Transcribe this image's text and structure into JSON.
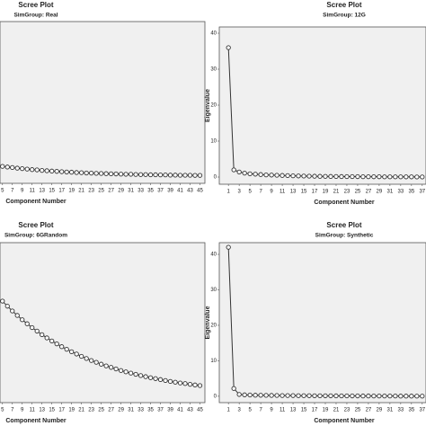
{
  "chart_data": [
    {
      "type": "line",
      "title": "Scree Plot",
      "subtitle": "SimGroup: Real",
      "x_label": "Component Number",
      "color": "#333333",
      "x": [
        5,
        6,
        7,
        8,
        9,
        10,
        11,
        12,
        13,
        14,
        15,
        16,
        17,
        18,
        19,
        20,
        21,
        22,
        23,
        24,
        25,
        26,
        27,
        28,
        29,
        30,
        31,
        32,
        33,
        34,
        35,
        36,
        37,
        38,
        39,
        40,
        41,
        42,
        43,
        44,
        45
      ],
      "values": [
        1.05,
        1.01,
        0.98,
        0.94,
        0.91,
        0.88,
        0.85,
        0.83,
        0.8,
        0.78,
        0.76,
        0.74,
        0.72,
        0.7,
        0.69,
        0.67,
        0.66,
        0.64,
        0.63,
        0.62,
        0.61,
        0.6,
        0.59,
        0.58,
        0.57,
        0.56,
        0.56,
        0.55,
        0.54,
        0.54,
        0.53,
        0.53,
        0.52,
        0.52,
        0.51,
        0.51,
        0.5,
        0.5,
        0.5,
        0.49,
        0.49
      ],
      "xlim": [
        4.5,
        46
      ],
      "ylim": [
        0,
        10
      ],
      "xticks": [
        5,
        7,
        9,
        11,
        13,
        15,
        17,
        19,
        21,
        23,
        25,
        27,
        29,
        31,
        33,
        35,
        37,
        39,
        41,
        43,
        45
      ]
    },
    {
      "type": "line",
      "title": "Scree Plot",
      "subtitle": "SimGroup: 12G",
      "x_label": "Component Number",
      "y_label": "Eigenvalue",
      "color": "#333333",
      "x": [
        1,
        2,
        3,
        4,
        5,
        6,
        7,
        8,
        9,
        10,
        11,
        12,
        13,
        14,
        15,
        16,
        17,
        18,
        19,
        20,
        21,
        22,
        23,
        24,
        25,
        26,
        27,
        28,
        29,
        30,
        31,
        32,
        33,
        34,
        35,
        36,
        37
      ],
      "values": [
        36,
        2,
        1.4,
        1.1,
        0.9,
        0.8,
        0.7,
        0.6,
        0.55,
        0.5,
        0.45,
        0.4,
        0.35,
        0.3,
        0.28,
        0.25,
        0.23,
        0.2,
        0.18,
        0.17,
        0.15,
        0.14,
        0.13,
        0.12,
        0.11,
        0.1,
        0.09,
        0.08,
        0.08,
        0.07,
        0.07,
        0.06,
        0.06,
        0.05,
        0.05,
        0.04,
        0.04
      ],
      "xlim": [
        -0.7,
        37.7
      ],
      "ylim": [
        -2,
        41.75
      ],
      "xticks": [
        1,
        3,
        5,
        7,
        9,
        11,
        13,
        15,
        17,
        19,
        21,
        23,
        25,
        27,
        29,
        31,
        33,
        35,
        37
      ],
      "yticks": [
        0,
        10,
        20,
        30,
        40
      ]
    },
    {
      "type": "line",
      "title": "Scree Plot",
      "subtitle": "SimGroup: 6GRandom",
      "x_label": "Component Number",
      "color": "#333333",
      "x": [
        5,
        6,
        7,
        8,
        9,
        10,
        11,
        12,
        13,
        14,
        15,
        16,
        17,
        18,
        19,
        20,
        21,
        22,
        23,
        24,
        25,
        26,
        27,
        28,
        29,
        30,
        31,
        32,
        33,
        34,
        35,
        36,
        37,
        38,
        39,
        40,
        41,
        42,
        43,
        44,
        45
      ],
      "values": [
        6.2,
        5.87,
        5.56,
        5.27,
        4.99,
        4.73,
        4.48,
        4.25,
        4.02,
        3.81,
        3.61,
        3.42,
        3.24,
        3.07,
        2.91,
        2.76,
        2.61,
        2.47,
        2.34,
        2.22,
        2.1,
        1.99,
        1.89,
        1.79,
        1.69,
        1.6,
        1.52,
        1.44,
        1.36,
        1.29,
        1.22,
        1.16,
        1.1,
        1.04,
        0.98,
        0.93,
        0.88,
        0.84,
        0.79,
        0.75,
        0.71
      ],
      "xlim": [
        4.5,
        46
      ],
      "ylim": [
        -0.4,
        10
      ],
      "xticks": [
        5,
        7,
        9,
        11,
        13,
        15,
        17,
        19,
        21,
        23,
        25,
        27,
        29,
        31,
        33,
        35,
        37,
        39,
        41,
        43,
        45
      ]
    },
    {
      "type": "line",
      "title": "Scree Plot",
      "subtitle": "SimGroup: Synthetic",
      "x_label": "Component Number",
      "y_label": "Eigenvalue",
      "color": "#333333",
      "x": [
        1,
        2,
        3,
        4,
        5,
        6,
        7,
        8,
        9,
        10,
        11,
        12,
        13,
        14,
        15,
        16,
        17,
        18,
        19,
        20,
        21,
        22,
        23,
        24,
        25,
        26,
        27,
        28,
        29,
        30,
        31,
        32,
        33,
        34,
        35,
        36,
        37
      ],
      "values": [
        42,
        2.2,
        0.5,
        0.4,
        0.35,
        0.3,
        0.28,
        0.26,
        0.24,
        0.22,
        0.2,
        0.19,
        0.18,
        0.17,
        0.16,
        0.15,
        0.14,
        0.13,
        0.12,
        0.12,
        0.11,
        0.1,
        0.1,
        0.09,
        0.09,
        0.08,
        0.08,
        0.07,
        0.07,
        0.06,
        0.06,
        0.06,
        0.05,
        0.05,
        0.05,
        0.04,
        0.04
      ],
      "xlim": [
        -0.7,
        37.7
      ],
      "ylim": [
        -1.8,
        43.3
      ],
      "xticks": [
        1,
        3,
        5,
        7,
        9,
        11,
        13,
        15,
        17,
        19,
        21,
        23,
        25,
        27,
        29,
        31,
        33,
        35,
        37
      ],
      "yticks": [
        0,
        10,
        20,
        30,
        40
      ]
    }
  ]
}
